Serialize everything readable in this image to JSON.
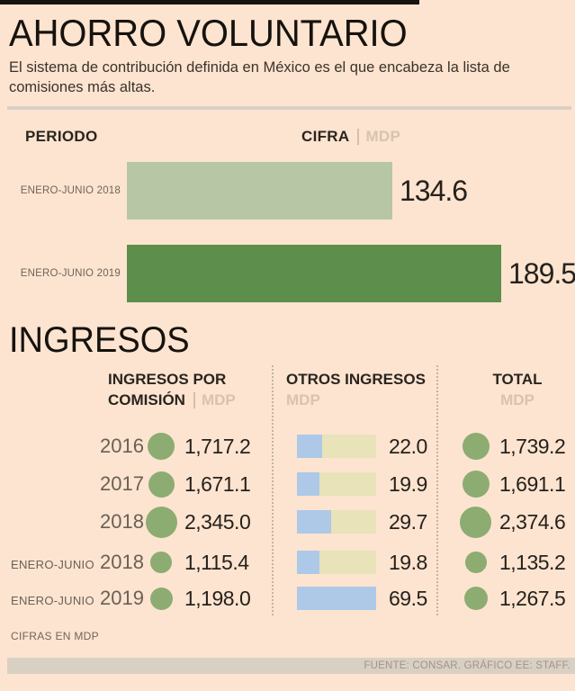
{
  "header": {
    "title": "AHORRO VOLUNTARIO",
    "subtitle": "El sistema de contribución definida en México es el que encabeza la lista de comisiones más altas."
  },
  "bar_chart": {
    "period_header": "PERIODO",
    "cifra_header": "CIFRA",
    "unit": "MDP",
    "rows": [
      {
        "label": "ENERO-JUNIO 2018",
        "value": 134.6,
        "display": "134.6",
        "color": "#b7c7a6"
      },
      {
        "label": "ENERO-JUNIO 2019",
        "value": 189.5,
        "display": "189.5",
        "color": "#5d8e4b"
      }
    ]
  },
  "ingresos": {
    "title": "INGRESOS",
    "columns": {
      "comision_line1": "INGRESOS POR",
      "comision_line2": "COMISIÓN",
      "comision_unit": "MDP",
      "otros_line1": "OTROS INGRESOS",
      "otros_unit": "MDP",
      "total_line1": "TOTAL",
      "total_unit": "MDP"
    },
    "rows": [
      {
        "period": "",
        "year": "2016",
        "comision": "1,717.2",
        "comision_value": 1717.2,
        "otros": "22.0",
        "otros_value": 22.0,
        "total": "1,739.2",
        "total_value": 1739.2
      },
      {
        "period": "",
        "year": "2017",
        "comision": "1,671.1",
        "comision_value": 1671.1,
        "otros": "19.9",
        "otros_value": 19.9,
        "total": "1,691.1",
        "total_value": 1691.1
      },
      {
        "period": "",
        "year": "2018",
        "comision": "2,345.0",
        "comision_value": 2345.0,
        "otros": "29.7",
        "otros_value": 29.7,
        "total": "2,374.6",
        "total_value": 2374.6
      },
      {
        "period": "ENERO-JUNIO",
        "year": "2018",
        "comision": "1,115.4",
        "comision_value": 1115.4,
        "otros": "19.8",
        "otros_value": 19.8,
        "total": "1,135.2",
        "total_value": 1135.2
      },
      {
        "period": "ENERO-JUNIO",
        "year": "2019",
        "comision": "1,198.0",
        "comision_value": 1198.0,
        "otros": "69.5",
        "otros_value": 69.5,
        "total": "1,267.5",
        "total_value": 1267.5
      }
    ]
  },
  "footer": {
    "note": "CIFRAS EN MDP",
    "source": "FUENTE: CONSAR. GRÁFICO EE: STAFF."
  },
  "colors": {
    "bg": "#fce4d0",
    "bar_light": "#b7c7a6",
    "bar_dark": "#5d8e4b",
    "circle": "#8cac71",
    "blue": "#adc9e7",
    "beige": "#e8e3b9",
    "tan": "#d9d0c4",
    "unit": "#d8c3ae"
  },
  "chart_data": [
    {
      "type": "bar",
      "title": "AHORRO VOLUNTARIO",
      "categories": [
        "ENERO-JUNIO 2018",
        "ENERO-JUNIO 2019"
      ],
      "values": [
        134.6,
        189.5
      ],
      "xlabel": "CIFRA (MDP)",
      "ylabel": "PERIODO",
      "orientation": "horizontal",
      "grid": false
    },
    {
      "type": "table",
      "title": "INGRESOS",
      "columns": [
        "PERIODO",
        "INGRESOS POR COMISIÓN (MDP)",
        "OTROS INGRESOS (MDP)",
        "TOTAL (MDP)"
      ],
      "rows": [
        [
          "2016",
          1717.2,
          22.0,
          1739.2
        ],
        [
          "2017",
          1671.1,
          19.9,
          1691.1
        ],
        [
          "2018",
          2345.0,
          29.7,
          2374.6
        ],
        [
          "ENERO-JUNIO 2018",
          1115.4,
          19.8,
          1135.2
        ],
        [
          "ENERO-JUNIO 2019",
          1198.0,
          69.5,
          1267.5
        ]
      ],
      "note": "CIFRAS EN MDP",
      "source": "FUENTE: CONSAR. GRÁFICO EE: STAFF."
    }
  ]
}
